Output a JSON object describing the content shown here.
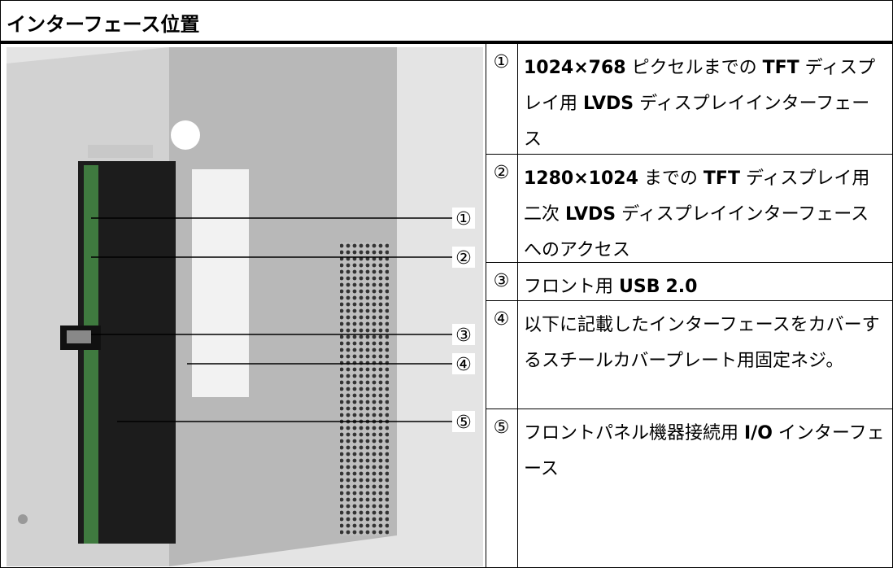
{
  "header": {
    "title": "インターフェース位置"
  },
  "callouts": [
    "①",
    "②",
    "③",
    "④",
    "⑤"
  ],
  "table": {
    "rows": [
      {
        "marker": "①",
        "text": "1024×768 ピクセルまでの TFT ディスプレイ用 LVDS ディスプレイインターフェース"
      },
      {
        "marker": "②",
        "text": "1280×1024 までの TFT ディスプレイ用二次 LVDS ディスプレイインターフェースへのアクセス"
      },
      {
        "marker": "③",
        "text": "フロント用 USB 2.0"
      },
      {
        "marker": "④",
        "text": "以下に記載したインターフェースをカバーするスチールカバープレート用固定ネジ。"
      },
      {
        "marker": "⑤",
        "text": "フロントパネル機器接続用 I/O インターフェース"
      }
    ]
  }
}
